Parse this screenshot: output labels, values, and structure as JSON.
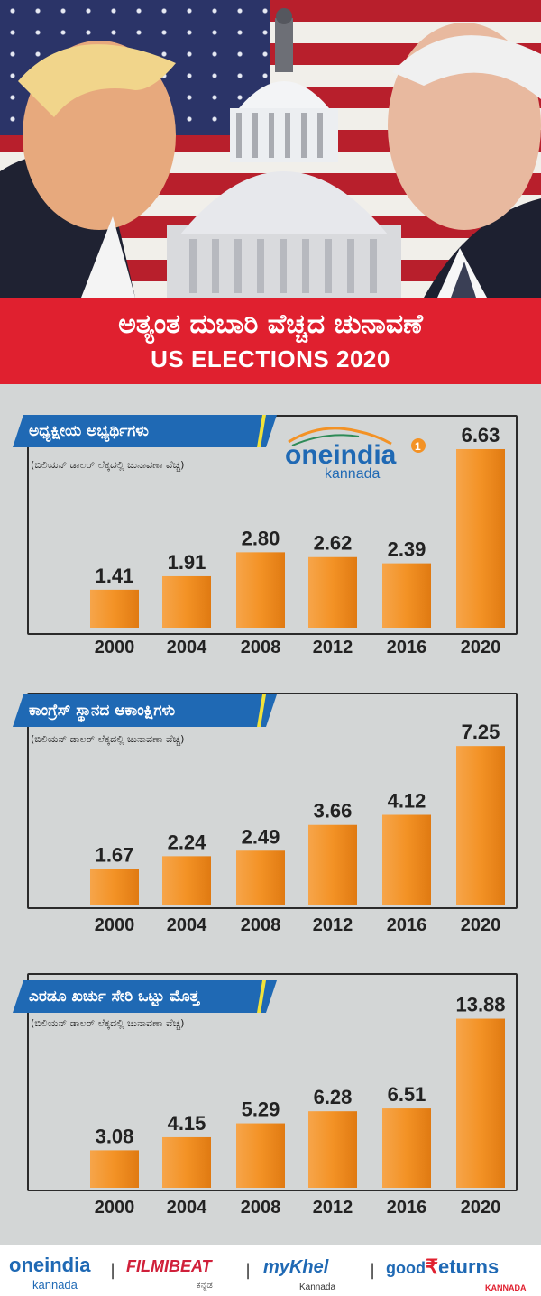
{
  "title": {
    "kannada": "ಅತ್ಯಂತ ದುಬಾರಿ ವೆಚ್ಚದ ಚುನಾವಣೆ",
    "english": "US ELECTIONS 2020"
  },
  "brand": {
    "logo_main": "oneindia",
    "logo_sub": "kannada",
    "logo_badge": "1"
  },
  "colors": {
    "bar": "#f39225",
    "label": "#1f69b4",
    "accent": "#f1e23a",
    "band": "#e0202f"
  },
  "chart_data": [
    {
      "type": "bar",
      "title": "ಅಧ್ಯಕ್ಷೀಯ ಅಭ್ಯರ್ಥಿಗಳು",
      "subtitle": "(ಬಿಲಿಯನ್ ಡಾಲರ್ ಲೆಕ್ಕದಲ್ಲಿ ಚುನಾವಣಾ ವೆಚ್ಚ)",
      "categories": [
        "2000",
        "2004",
        "2008",
        "2012",
        "2016",
        "2020"
      ],
      "values": [
        1.41,
        1.91,
        2.8,
        2.62,
        2.39,
        6.63
      ],
      "labels": [
        "1.41",
        "1.91",
        "2.80",
        "2.62",
        "2.39",
        "6.63"
      ],
      "ylim": [
        0,
        7.5
      ],
      "xlabel": "",
      "ylabel": ""
    },
    {
      "type": "bar",
      "title": "ಕಾಂಗ್ರೆಸ್ ಸ್ಥಾನದ ಆಕಾಂಕ್ಷಿಗಳು",
      "subtitle": "(ಬಿಲಿಯನ್ ಡಾಲರ್ ಲೆಕ್ಕದಲ್ಲಿ ಚುನಾವಣಾ ವೆಚ್ಚ)",
      "categories": [
        "2000",
        "2004",
        "2008",
        "2012",
        "2016",
        "2020"
      ],
      "values": [
        1.67,
        2.24,
        2.49,
        3.66,
        4.12,
        7.25
      ],
      "labels": [
        "1.67",
        "2.24",
        "2.49",
        "3.66",
        "4.12",
        "7.25"
      ],
      "ylim": [
        0,
        8.2
      ],
      "xlabel": "",
      "ylabel": ""
    },
    {
      "type": "bar",
      "title": "ಎರಡೂ ಖರ್ಚು ಸೇರಿ ಒಟ್ಟು ಮೊತ್ತ",
      "subtitle": "(ಬಿಲಿಯನ್ ಡಾಲರ್ ಲೆಕ್ಕದಲ್ಲಿ ಚುನಾವಣಾ ವೆಚ್ಚ)",
      "categories": [
        "2000",
        "2004",
        "2008",
        "2012",
        "2016",
        "2020"
      ],
      "values": [
        3.08,
        4.15,
        5.29,
        6.28,
        6.51,
        13.88
      ],
      "labels": [
        "3.08",
        "4.15",
        "5.29",
        "6.28",
        "6.51",
        "13.88"
      ],
      "ylim": [
        0,
        15.4
      ],
      "xlabel": "",
      "ylabel": ""
    }
  ],
  "footer": {
    "oneindia": "oneindia",
    "oneindia_sub": "kannada",
    "filmibeat": "FILMIBEAT",
    "filmibeat_sub": "ಕನ್ನಡ",
    "mykhel": "myKhel",
    "mykhel_sub": "Kannada",
    "goodreturns_1": "good",
    "goodreturns_2": "eturns",
    "goodreturns_sub": "KANNADA",
    "separator": "|"
  }
}
